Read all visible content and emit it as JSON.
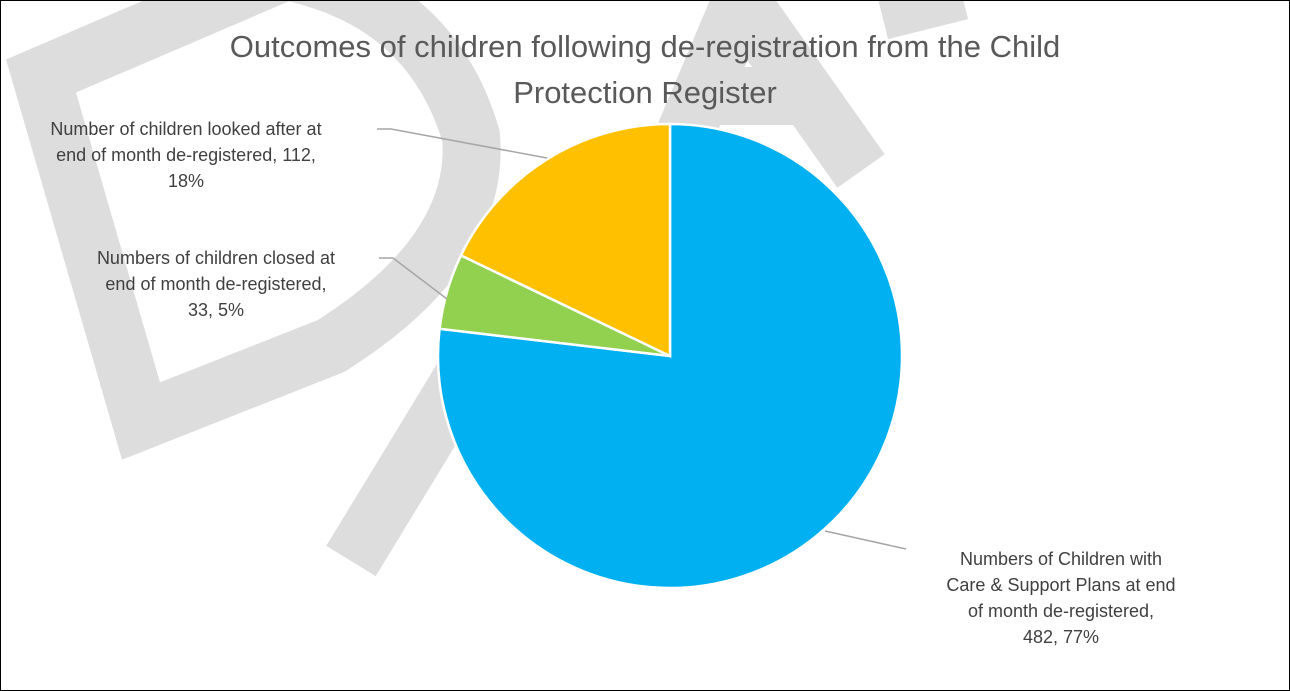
{
  "chart_data": {
    "type": "pie",
    "title": "Outcomes of children following de-registration from the Child Protection Register",
    "title_lines": [
      "Outcomes of children following de-registration from the Child",
      "Protection Register"
    ],
    "slices": [
      {
        "label": "Numbers of Children with Care & Support Plans at end of month de-registered",
        "value": 482,
        "percent": "77%",
        "color": "#00b0f0",
        "label_lines": [
          "Numbers of Children with",
          "Care & Support Plans at end",
          "of month de-registered,",
          "482, 77%"
        ]
      },
      {
        "label": "Numbers of children closed at end of month de-registered",
        "value": 33,
        "percent": "5%",
        "color": "#92d050",
        "label_lines": [
          "Numbers of children closed at",
          "end of month de-registered,",
          "33, 5%"
        ]
      },
      {
        "label": "Number of children looked after at end of month de-registered",
        "value": 112,
        "percent": "18%",
        "color": "#ffc000",
        "label_lines": [
          "Number of children looked after at",
          "end of month de-registered, 112,",
          "18%"
        ]
      }
    ],
    "legend": "none",
    "watermark": "DRAFT"
  }
}
